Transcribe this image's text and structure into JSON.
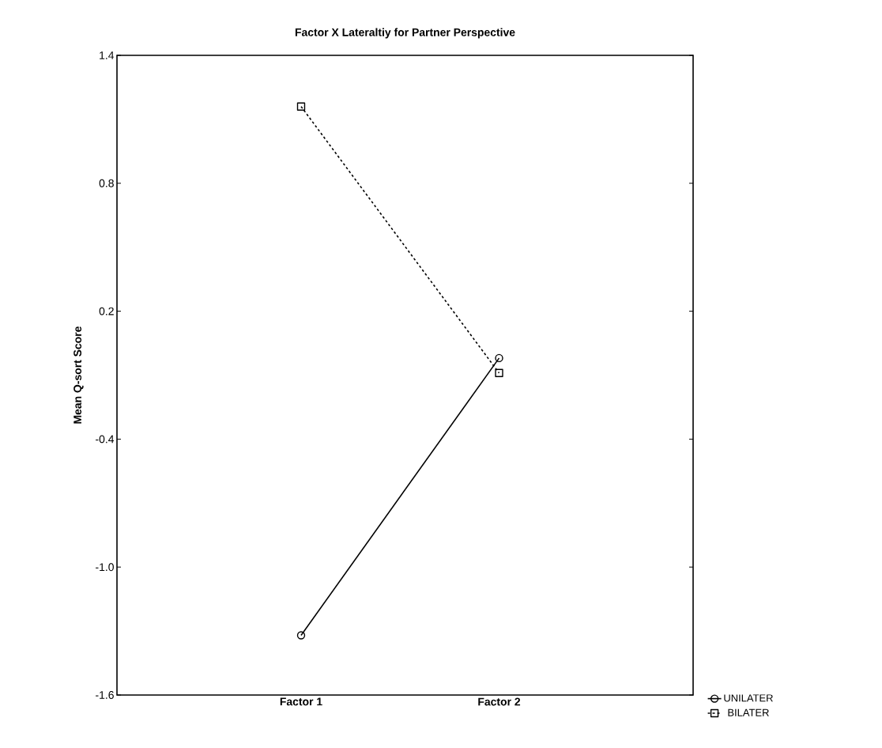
{
  "chart_data": {
    "type": "line",
    "title": "Factor X Lateraltiy for Partner Perspective",
    "ylabel": "Mean Q-sort Score",
    "categories": [
      "Factor 1",
      "Factor 2"
    ],
    "series": [
      {
        "name": "UNILATER",
        "color": "#000000",
        "values": [
          -1.32,
          -0.02
        ],
        "marker": "circle",
        "line_style": "solid"
      },
      {
        "name": "BILATER",
        "color": "#000000",
        "values": [
          1.16,
          -0.09
        ],
        "marker": "square",
        "line_style": "dashed"
      }
    ],
    "ylim": [
      -1.6,
      1.4
    ],
    "yticks": [
      -1.6,
      {
        "value": -1.0,
        "label": "-1.0"
      },
      -0.4,
      0.2,
      0.8,
      1.4
    ],
    "legend": "bottom right",
    "grid": false
  }
}
